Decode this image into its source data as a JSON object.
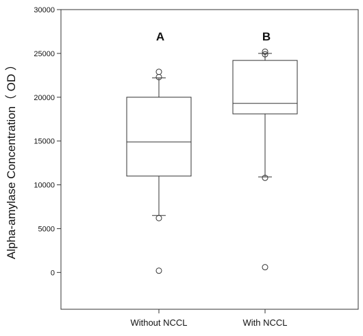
{
  "chart_data": {
    "type": "box",
    "ylabel": "Alpha-amylase Concentration（ OD ）",
    "ylim": [
      -4200,
      30000
    ],
    "yticks": [
      0,
      5000,
      10000,
      15000,
      20000,
      25000,
      30000
    ],
    "categories": [
      "Without NCCL",
      "With NCCL"
    ],
    "boxes": [
      {
        "category": "Without NCCL",
        "group_label": "A",
        "whisker_low": 6500,
        "q1": 11000,
        "median": 14900,
        "q3": 20000,
        "whisker_high": 22200,
        "outliers": [
          6200,
          200,
          22300,
          22900
        ]
      },
      {
        "category": "With NCCL",
        "group_label": "B",
        "whisker_low": 10900,
        "q1": 18100,
        "median": 19300,
        "q3": 24200,
        "whisker_high": 25000,
        "outliers": [
          10800,
          600,
          24900,
          25200
        ]
      }
    ]
  }
}
